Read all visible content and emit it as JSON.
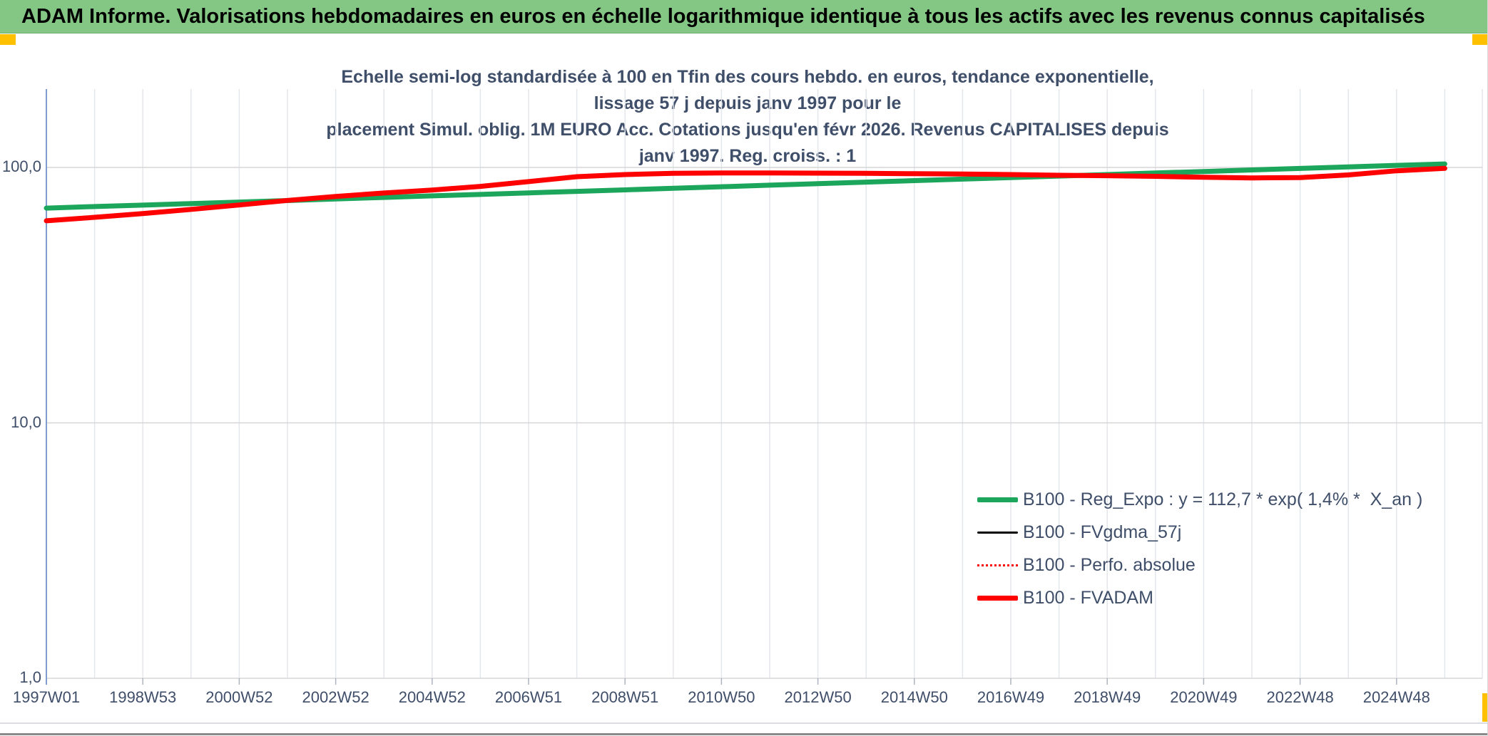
{
  "title_bar": {
    "text": "ADAM Informe. Valorisations hebdomadaires en euros en échelle logarithmique identique à tous les actifs avec les revenus connus capitalisés"
  },
  "chart": {
    "subtitle_line1": "Echelle semi-log standardisée à 100 en Tfin des cours hebdo. en euros, tendance exponentielle, lissage 57 j depuis janv 1997 pour le",
    "subtitle_line2": "placement Simul. oblig. 1M EURO Acc. Cotations jusqu'en févr 2026. Revenus CAPITALISES depuis janv 1997. Reg. croiss. : 1"
  },
  "colors": {
    "header_green": "#84c784",
    "corner_yellow": "#ffc000",
    "series_green": "#1ca65b",
    "series_red": "#ff0000",
    "series_black": "#000000",
    "text_slate": "#3f4e69",
    "grid_vertical": "#e3e6ea",
    "grid_horizontal": "#d6d6d6",
    "y_axis_line": "#7e9cd0"
  },
  "chart_data": {
    "type": "line",
    "title": "Echelle semi-log standardisée à 100 en Tfin des cours hebdo. en euros, tendance exponentielle, lissage 57 j depuis janv 1997 pour le placement Simul. oblig. 1M EURO Acc. Cotations jusqu'en févr 2026. Revenus CAPITALISES depuis janv 1997. Reg. croiss. : 1",
    "y_axis": {
      "scale": "log10",
      "tick_labels": [
        "100,0",
        "10,0",
        "1,0"
      ],
      "tick_values": [
        100,
        10,
        1
      ],
      "range": [
        1,
        200
      ]
    },
    "x_axis": {
      "tick_labels": [
        "1997W01",
        "1998W53",
        "2000W52",
        "2002W52",
        "2004W52",
        "2006W51",
        "2008W51",
        "2010W50",
        "2012W50",
        "2014W50",
        "2016W49",
        "2018W49",
        "2020W49",
        "2022W48",
        "2024W48"
      ],
      "tick_label_years": [
        1997,
        1999,
        2001,
        2003,
        2005,
        2007,
        2009,
        2011,
        2013,
        2015,
        2017,
        2019,
        2021,
        2023,
        2025
      ],
      "range_years": [
        1997,
        2026.1
      ],
      "gridlines": "yearly"
    },
    "years": [
      1997,
      1998,
      1999,
      2000,
      2001,
      2002,
      2003,
      2004,
      2005,
      2006,
      2007,
      2008,
      2009,
      2010,
      2011,
      2012,
      2013,
      2014,
      2015,
      2016,
      2017,
      2018,
      2019,
      2020,
      2021,
      2022,
      2023,
      2024,
      2025,
      2026
    ],
    "series": [
      {
        "name": "B100 - Reg_Expo : y = 112,7 * exp( 1,4% *  X_an )",
        "color": "#1ca65b",
        "style": "solid",
        "stroke_width": 7,
        "values": [
          69.3,
          70.3,
          71.2,
          72.2,
          73.2,
          74.2,
          75.3,
          76.3,
          77.4,
          78.4,
          79.5,
          80.6,
          81.7,
          82.9,
          84.0,
          85.2,
          86.4,
          87.6,
          88.8,
          90.0,
          91.3,
          92.5,
          93.8,
          95.1,
          96.4,
          97.8,
          99.1,
          100.5,
          101.9,
          103.2
        ]
      },
      {
        "name": "B100 - FVgdma_57j",
        "color": "#000000",
        "style": "solid",
        "stroke_width": 3,
        "values": [
          61.8,
          63.8,
          66.0,
          68.5,
          71.3,
          74.3,
          77.0,
          79.4,
          81.6,
          84.3,
          88.0,
          92.0,
          93.8,
          94.8,
          95.2,
          95.2,
          95.0,
          94.8,
          94.5,
          94.2,
          93.8,
          93.2,
          92.8,
          92.3,
          91.5,
          91.0,
          91.3,
          93.5,
          97.0,
          99.2
        ]
      },
      {
        "name": "B100 - Perfo. absolue",
        "color": "#ff0000",
        "style": "dotted",
        "stroke_width": 2,
        "values": [
          61.8,
          63.8,
          66.0,
          68.5,
          71.3,
          74.3,
          77.0,
          79.4,
          81.6,
          84.3,
          88.0,
          92.0,
          93.8,
          94.8,
          95.2,
          95.2,
          95.0,
          94.8,
          94.5,
          94.2,
          93.8,
          93.2,
          92.8,
          92.3,
          91.5,
          91.0,
          91.3,
          93.5,
          97.0,
          99.2
        ]
      },
      {
        "name": "B100 - FVADAM",
        "color": "#ff0000",
        "style": "solid",
        "stroke_width": 7,
        "values": [
          61.8,
          63.8,
          66.0,
          68.5,
          71.3,
          74.3,
          77.0,
          79.4,
          81.6,
          84.3,
          88.0,
          92.0,
          93.8,
          94.8,
          95.2,
          95.2,
          95.0,
          94.8,
          94.5,
          94.2,
          93.8,
          93.2,
          92.8,
          92.3,
          91.5,
          91.0,
          91.3,
          93.5,
          97.0,
          99.2
        ]
      }
    ],
    "legend_position": "inside-bottom-right"
  }
}
